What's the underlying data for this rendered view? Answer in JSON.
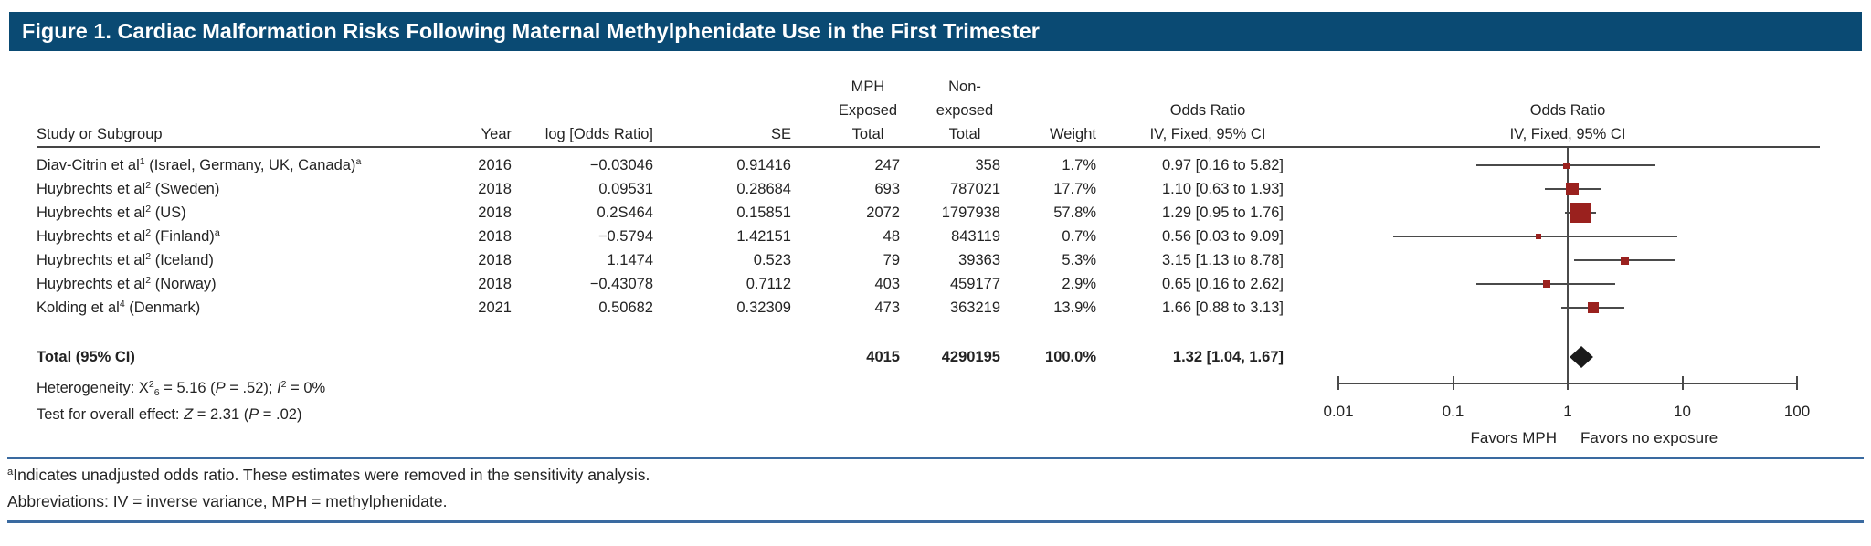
{
  "figure_title": "Figure 1. Cardiac Malformation Risks Following Maternal Methylphenidate Use in the First Trimester",
  "table": {
    "headers": {
      "study": "Study or Subgroup",
      "year": "Year",
      "log_or": "log [Odds Ratio]",
      "se": "SE",
      "exposed": [
        "MPH",
        "Exposed",
        "Total"
      ],
      "nonexposed": [
        "Non-",
        "exposed",
        "Total"
      ],
      "weight": "Weight",
      "or_table": [
        "Odds Ratio",
        "IV, Fixed, 95% CI"
      ],
      "or_plot": [
        "Odds Ratio",
        "IV, Fixed, 95% CI"
      ]
    },
    "rows": [
      {
        "study_parts": [
          {
            "t": "Diav-Citrin et al"
          },
          {
            "t": "1",
            "sup": 1
          },
          {
            "t": " (Israel, Germany, UK, Canada)"
          },
          {
            "t": "a",
            "sup": 1
          }
        ],
        "year": "2016",
        "log_or": "−0.03046",
        "se": "0.91416",
        "exposed": "247",
        "nonexposed": "358",
        "weight": "1.7%",
        "or_ci": "0.97 [0.16 to 5.82]"
      },
      {
        "study_parts": [
          {
            "t": "Huybrechts et al"
          },
          {
            "t": "2",
            "sup": 1
          },
          {
            "t": " (Sweden)"
          }
        ],
        "year": "2018",
        "log_or": "0.09531",
        "se": "0.28684",
        "exposed": "693",
        "nonexposed": "787021",
        "weight": "17.7%",
        "or_ci": "1.10 [0.63 to 1.93]"
      },
      {
        "study_parts": [
          {
            "t": "Huybrechts et al"
          },
          {
            "t": "2",
            "sup": 1
          },
          {
            "t": " (US)"
          }
        ],
        "year": "2018",
        "log_or": "0.2S464",
        "se": "0.15851",
        "exposed": "2072",
        "nonexposed": "1797938",
        "weight": "57.8%",
        "or_ci": "1.29 [0.95 to 1.76]"
      },
      {
        "study_parts": [
          {
            "t": "Huybrechts et al"
          },
          {
            "t": "2",
            "sup": 1
          },
          {
            "t": " (Finland)"
          },
          {
            "t": "a",
            "sup": 1
          }
        ],
        "year": "2018",
        "log_or": "−0.5794",
        "se": "1.42151",
        "exposed": "48",
        "nonexposed": "843119",
        "weight": "0.7%",
        "or_ci": "0.56 [0.03 to 9.09]"
      },
      {
        "study_parts": [
          {
            "t": "Huybrechts et al"
          },
          {
            "t": "2",
            "sup": 1
          },
          {
            "t": " (Iceland)"
          }
        ],
        "year": "2018",
        "log_or": "1.1474",
        "se": "0.523",
        "exposed": "79",
        "nonexposed": "39363",
        "weight": "5.3%",
        "or_ci": "3.15 [1.13 to 8.78]"
      },
      {
        "study_parts": [
          {
            "t": "Huybrechts et al"
          },
          {
            "t": "2",
            "sup": 1
          },
          {
            "t": " (Norway)"
          }
        ],
        "year": "2018",
        "log_or": "−0.43078",
        "se": "0.7112",
        "exposed": "403",
        "nonexposed": "459177",
        "weight": "2.9%",
        "or_ci": "0.65 [0.16 to 2.62]"
      },
      {
        "study_parts": [
          {
            "t": "Kolding et al"
          },
          {
            "t": "4",
            "sup": 1
          },
          {
            "t": " (Denmark)"
          }
        ],
        "year": "2021",
        "log_or": "0.50682",
        "se": "0.32309",
        "exposed": "473",
        "nonexposed": "363219",
        "weight": "13.9%",
        "or_ci": "1.66 [0.88 to 3.13]"
      }
    ],
    "total_row": {
      "label": "Total (95% CI)",
      "exposed": "4015",
      "nonexposed": "4290195",
      "weight": "100.0%",
      "or_ci": "1.32 [1.04, 1.67]"
    },
    "heterogeneity_parts": [
      {
        "t": "Heterogeneity: X"
      },
      {
        "t": "2",
        "sup": 1
      },
      {
        "t": "6",
        "sub": 1
      },
      {
        "t": " = 5.16 ("
      },
      {
        "t": "P",
        "i": 1
      },
      {
        "t": " = .52); "
      },
      {
        "t": "I",
        "i": 1
      },
      {
        "t": "2",
        "sup": 1
      },
      {
        "t": " = 0%"
      }
    ],
    "overall_effect_parts": [
      {
        "t": "Test for overall effect: "
      },
      {
        "t": "Z",
        "i": 1
      },
      {
        "t": " = 2.31 ("
      },
      {
        "t": "P",
        "i": 1
      },
      {
        "t": " = .02)"
      }
    ]
  },
  "footnotes": {
    "a_parts": [
      {
        "t": "a",
        "sup": 1
      },
      {
        "t": "Indicates unadjusted odds ratio. These estimates were removed in the sensitivity analysis."
      }
    ],
    "abbrev_parts": [
      {
        "t": "Abbreviations: IV = inverse variance, MPH = methylphenidate."
      }
    ]
  },
  "colors": {
    "title_bar": "#0A4A73",
    "marker_red": "#9A211E",
    "diamond_black": "#1A1A1A",
    "rule_blue": "#3A6AA0",
    "line_gray": "#4A4A4A"
  },
  "chart_data": {
    "type": "forest",
    "title": "Figure 1. Cardiac Malformation Risks Following Maternal Methylphenidate Use in the First Trimester",
    "effect_measure": "Odds Ratio, IV, Fixed, 95% CI",
    "x_scale": "log10",
    "x_ticks": [
      0.01,
      0.1,
      1,
      10,
      100
    ],
    "x_range": [
      0.01,
      100
    ],
    "reference_line": 1,
    "axis_annotations": {
      "left_of_1": "Favors MPH",
      "right_of_1": "Favors no exposure"
    },
    "studies": [
      {
        "study": "Diav-Citrin et al (Israel, Germany, UK, Canada)",
        "year": 2016,
        "log_odds_ratio_text": "−0.03046",
        "se_text": "0.91416",
        "mph_exposed_total": 247,
        "non_exposed_total": 358,
        "weight_pct": 1.7,
        "odds_ratio": 0.97,
        "ci_low": 0.16,
        "ci_high": 5.82,
        "unadjusted_flag": true
      },
      {
        "study": "Huybrechts et al (Sweden)",
        "year": 2018,
        "log_odds_ratio_text": "0.09531",
        "se_text": "0.28684",
        "mph_exposed_total": 693,
        "non_exposed_total": 787021,
        "weight_pct": 17.7,
        "odds_ratio": 1.1,
        "ci_low": 0.63,
        "ci_high": 1.93,
        "unadjusted_flag": false
      },
      {
        "study": "Huybrechts et al (US)",
        "year": 2018,
        "log_odds_ratio_text": "0.2S464",
        "se_text": "0.15851",
        "mph_exposed_total": 2072,
        "non_exposed_total": 1797938,
        "weight_pct": 57.8,
        "odds_ratio": 1.29,
        "ci_low": 0.95,
        "ci_high": 1.76,
        "unadjusted_flag": false
      },
      {
        "study": "Huybrechts et al (Finland)",
        "year": 2018,
        "log_odds_ratio_text": "−0.5794",
        "se_text": "1.42151",
        "mph_exposed_total": 48,
        "non_exposed_total": 843119,
        "weight_pct": 0.7,
        "odds_ratio": 0.56,
        "ci_low": 0.03,
        "ci_high": 9.09,
        "unadjusted_flag": true
      },
      {
        "study": "Huybrechts et al (Iceland)",
        "year": 2018,
        "log_odds_ratio_text": "1.1474",
        "se_text": "0.523",
        "mph_exposed_total": 79,
        "non_exposed_total": 39363,
        "weight_pct": 5.3,
        "odds_ratio": 3.15,
        "ci_low": 1.13,
        "ci_high": 8.78,
        "unadjusted_flag": false
      },
      {
        "study": "Huybrechts et al (Norway)",
        "year": 2018,
        "log_odds_ratio_text": "−0.43078",
        "se_text": "0.7112",
        "mph_exposed_total": 403,
        "non_exposed_total": 459177,
        "weight_pct": 2.9,
        "odds_ratio": 0.65,
        "ci_low": 0.16,
        "ci_high": 2.62,
        "unadjusted_flag": false
      },
      {
        "study": "Kolding et al (Denmark)",
        "year": 2021,
        "log_odds_ratio_text": "0.50682",
        "se_text": "0.32309",
        "mph_exposed_total": 473,
        "non_exposed_total": 363219,
        "weight_pct": 13.9,
        "odds_ratio": 1.66,
        "ci_low": 0.88,
        "ci_high": 3.13,
        "unadjusted_flag": false
      }
    ],
    "total": {
      "label": "Total (95% CI)",
      "mph_exposed_total": 4015,
      "non_exposed_total": 4290195,
      "weight_pct": 100.0,
      "odds_ratio": 1.32,
      "ci_low": 1.04,
      "ci_high": 1.67
    },
    "heterogeneity_text": "Heterogeneity: X2_6 = 5.16 (P = .52); I2 = 0%",
    "overall_effect_text": "Test for overall effect: Z = 2.31 (P = .02)"
  }
}
